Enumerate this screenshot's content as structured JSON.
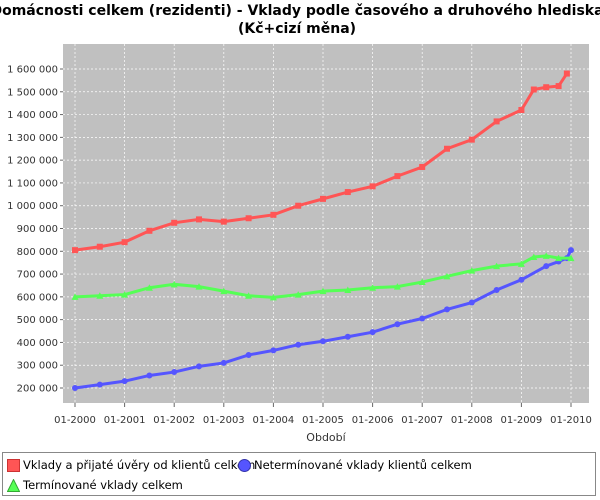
{
  "chart_data": {
    "type": "line",
    "title_line1": "Domácnosti celkem (rezidenti) - Vklady podle časového a druhového hlediska",
    "title_line2": "(Kč+cizí měna)",
    "xlabel": "Období",
    "ylabel": "",
    "x_ticks": [
      "01-2000",
      "01-2001",
      "01-2002",
      "01-2003",
      "01-2004",
      "01-2005",
      "01-2006",
      "01-2007",
      "01-2008",
      "01-2009",
      "01-2010"
    ],
    "y_ticks": [
      "200 000",
      "300 000",
      "400 000",
      "500 000",
      "600 000",
      "700 000",
      "800 000",
      "900 000",
      "1 000 000",
      "1 100 000",
      "1 200 000",
      "1 300 000",
      "1 400 000",
      "1 500 000",
      "1 600 000"
    ],
    "x_range": [
      "01-2000",
      "01-2010"
    ],
    "ylim": [
      150000,
      1640000
    ],
    "grid": true,
    "legend_position": "bottom",
    "series": [
      {
        "name": "Vklady a přijaté úvěry od klientů celkem",
        "color": "#ff5555",
        "marker": "square",
        "anchors": [
          [
            "01-2000",
            805000
          ],
          [
            "07-2000",
            820000
          ],
          [
            "01-2001",
            840000
          ],
          [
            "07-2001",
            890000
          ],
          [
            "01-2002",
            925000
          ],
          [
            "07-2002",
            940000
          ],
          [
            "01-2003",
            930000
          ],
          [
            "07-2003",
            945000
          ],
          [
            "01-2004",
            960000
          ],
          [
            "07-2004",
            1000000
          ],
          [
            "01-2005",
            1030000
          ],
          [
            "07-2005",
            1060000
          ],
          [
            "01-2006",
            1085000
          ],
          [
            "07-2006",
            1130000
          ],
          [
            "01-2007",
            1170000
          ],
          [
            "07-2007",
            1250000
          ],
          [
            "01-2008",
            1290000
          ],
          [
            "07-2008",
            1370000
          ],
          [
            "01-2009",
            1420000
          ],
          [
            "04-2009",
            1510000
          ],
          [
            "07-2009",
            1520000
          ],
          [
            "10-2009",
            1525000
          ],
          [
            "12-2009",
            1580000
          ]
        ]
      },
      {
        "name": "Netermínované vklady klientů celkem",
        "color": "#5555ff",
        "marker": "circle",
        "anchors": [
          [
            "01-2000",
            200000
          ],
          [
            "07-2000",
            215000
          ],
          [
            "01-2001",
            230000
          ],
          [
            "07-2001",
            255000
          ],
          [
            "01-2002",
            270000
          ],
          [
            "07-2002",
            295000
          ],
          [
            "01-2003",
            310000
          ],
          [
            "07-2003",
            345000
          ],
          [
            "01-2004",
            365000
          ],
          [
            "07-2004",
            390000
          ],
          [
            "01-2005",
            405000
          ],
          [
            "07-2005",
            425000
          ],
          [
            "01-2006",
            445000
          ],
          [
            "07-2006",
            480000
          ],
          [
            "01-2007",
            505000
          ],
          [
            "07-2007",
            545000
          ],
          [
            "01-2008",
            575000
          ],
          [
            "07-2008",
            630000
          ],
          [
            "01-2009",
            675000
          ],
          [
            "07-2009",
            735000
          ],
          [
            "10-2009",
            755000
          ],
          [
            "12-2009",
            770000
          ],
          [
            "01-2010",
            805000
          ]
        ]
      },
      {
        "name": "Termínované vklady celkem",
        "color": "#55ff55",
        "marker": "triangle",
        "anchors": [
          [
            "01-2000",
            600000
          ],
          [
            "07-2000",
            605000
          ],
          [
            "01-2001",
            610000
          ],
          [
            "07-2001",
            640000
          ],
          [
            "01-2002",
            655000
          ],
          [
            "07-2002",
            645000
          ],
          [
            "01-2003",
            625000
          ],
          [
            "07-2003",
            605000
          ],
          [
            "01-2004",
            598000
          ],
          [
            "07-2004",
            610000
          ],
          [
            "01-2005",
            625000
          ],
          [
            "07-2005",
            630000
          ],
          [
            "01-2006",
            640000
          ],
          [
            "07-2006",
            645000
          ],
          [
            "01-2007",
            665000
          ],
          [
            "07-2007",
            690000
          ],
          [
            "01-2008",
            715000
          ],
          [
            "07-2008",
            735000
          ],
          [
            "01-2009",
            745000
          ],
          [
            "04-2009",
            775000
          ],
          [
            "07-2009",
            780000
          ],
          [
            "10-2009",
            770000
          ],
          [
            "01-2010",
            770000
          ]
        ]
      }
    ]
  }
}
